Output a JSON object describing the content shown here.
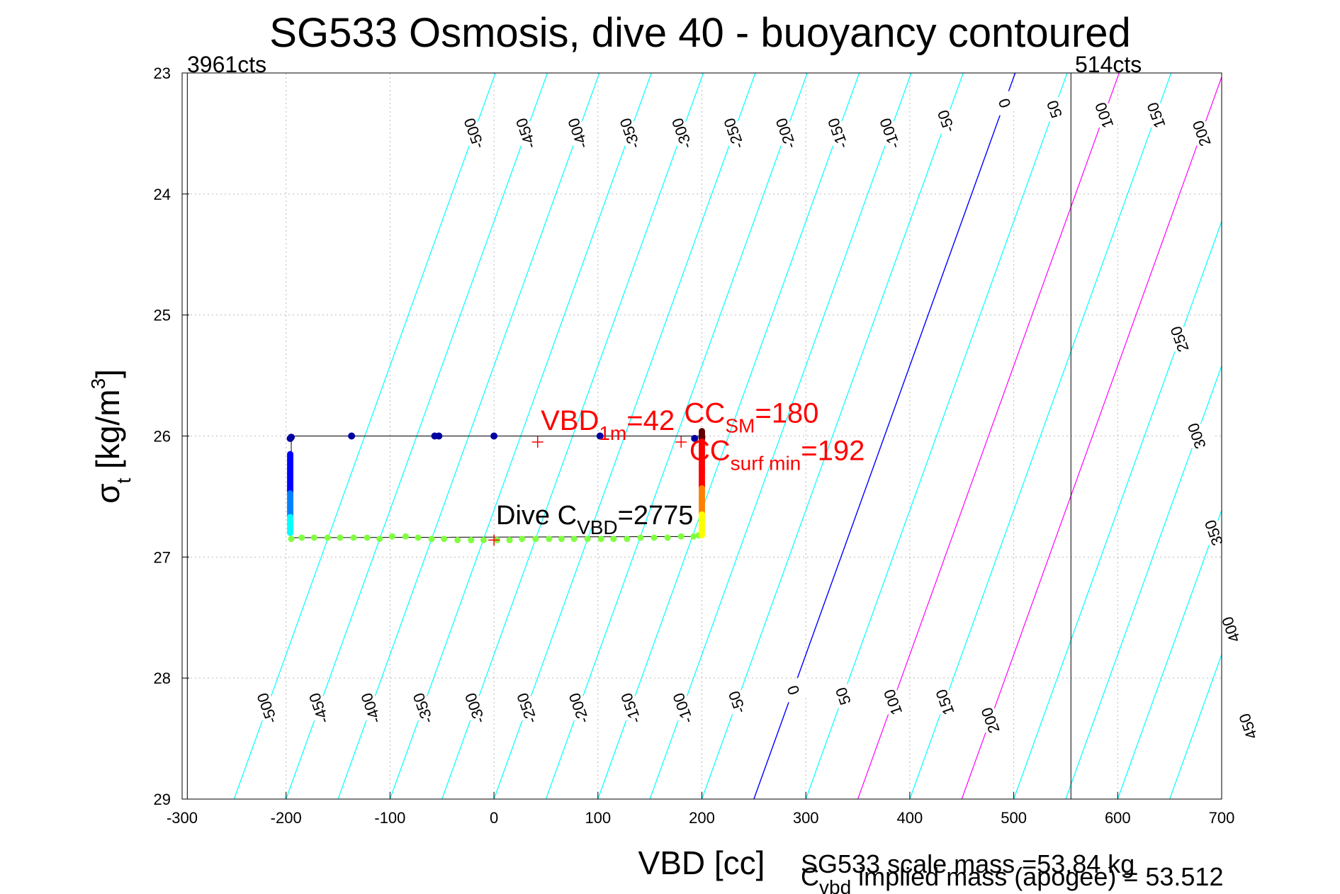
{
  "chart_data": {
    "type": "line",
    "title": "SG533 Osmosis, dive 40 - buoyancy contoured",
    "xlabel": "VBD [cc]",
    "ylabel_main": "σ",
    "ylabel_sub": "t",
    "ylabel_unit": " [kg/m",
    "ylabel_exp": "3",
    "ylabel_close": "]",
    "xlim": [
      -300,
      700
    ],
    "ylim": [
      23,
      29
    ],
    "y_reversed": true,
    "grid": "dotted",
    "xticks": [
      -300,
      -200,
      -100,
      0,
      100,
      200,
      300,
      400,
      500,
      600,
      700
    ],
    "xtick_labels": [
      "-300",
      "-200",
      "-100",
      "0",
      "100",
      "200",
      "300",
      "400",
      "500",
      "600",
      "700"
    ],
    "yticks": [
      23,
      24,
      25,
      26,
      27,
      28,
      29
    ],
    "ytick_labels": [
      "23",
      "24",
      "25",
      "26",
      "27",
      "28",
      "29"
    ],
    "vbd_limits": [
      {
        "name": "min_counts",
        "x": -295,
        "label": "3961cts"
      },
      {
        "name": "max_counts",
        "x": 555,
        "label": "514cts"
      }
    ],
    "contours": {
      "levels": [
        -500,
        -450,
        -400,
        -350,
        -300,
        -250,
        -200,
        -150,
        -100,
        -50,
        0,
        50,
        100,
        150,
        200,
        250,
        300,
        350,
        400,
        450
      ],
      "slope_cc_per_sigma": -41.9,
      "intercept_at_sigma_29": 250,
      "colors": {
        "negative_and_small": "#00ffff",
        "zero": "#0000ff",
        "positive_large": "#ff00ff"
      },
      "top_labels": [
        {
          "level": "-500",
          "sigma": 23.5
        },
        {
          "level": "-450",
          "sigma": 23.5
        },
        {
          "level": "-400",
          "sigma": 23.5
        },
        {
          "level": "-350",
          "sigma": 23.5
        },
        {
          "level": "-300",
          "sigma": 23.5
        },
        {
          "level": "-250",
          "sigma": 23.5
        },
        {
          "level": "-200",
          "sigma": 23.5
        },
        {
          "level": "-150",
          "sigma": 23.5
        },
        {
          "level": "-100",
          "sigma": 23.5
        },
        {
          "level": "-50",
          "sigma": 23.4
        },
        {
          "level": "0",
          "sigma": 23.25
        },
        {
          "level": "50",
          "sigma": 23.3
        },
        {
          "level": "100",
          "sigma": 23.35
        },
        {
          "level": "150",
          "sigma": 23.35
        },
        {
          "level": "200",
          "sigma": 23.5
        },
        {
          "level": "250",
          "sigma": 25.2
        },
        {
          "level": "300",
          "sigma": 26.0
        },
        {
          "level": "350",
          "sigma": 26.8
        },
        {
          "level": "400",
          "sigma": 27.6
        },
        {
          "level": "450",
          "sigma": 28.4
        }
      ],
      "bottom_labels": [
        {
          "level": "-500",
          "sigma": 28.25
        },
        {
          "level": "-450",
          "sigma": 28.25
        },
        {
          "level": "-400",
          "sigma": 28.25
        },
        {
          "level": "-350",
          "sigma": 28.25
        },
        {
          "level": "-300",
          "sigma": 28.25
        },
        {
          "level": "-250",
          "sigma": 28.25
        },
        {
          "level": "-200",
          "sigma": 28.25
        },
        {
          "level": "-150",
          "sigma": 28.25
        },
        {
          "level": "-100",
          "sigma": 28.25
        },
        {
          "level": "-50",
          "sigma": 28.2
        },
        {
          "level": "0",
          "sigma": 28.1
        },
        {
          "level": "50",
          "sigma": 28.15
        },
        {
          "level": "100",
          "sigma": 28.2
        },
        {
          "level": "150",
          "sigma": 28.2
        },
        {
          "level": "200",
          "sigma": 28.35
        }
      ]
    },
    "series": [
      {
        "kind": "dive_path_line",
        "color": "#000000",
        "points": [
          [
            -197,
            26.0
          ],
          [
            193,
            26.0
          ],
          [
            200,
            26.0
          ],
          [
            200,
            26.83
          ],
          [
            -195,
            26.84
          ],
          [
            -195,
            26.0
          ]
        ]
      },
      {
        "kind": "apogee_points",
        "color": "#0000a0",
        "points": [
          [
            -196,
            26.02
          ],
          [
            -195,
            26.01
          ],
          [
            -137,
            26.0
          ],
          [
            -57,
            26.0
          ],
          [
            -53,
            26.0
          ],
          [
            0,
            26.0
          ],
          [
            102,
            26.0
          ],
          [
            193,
            26.02
          ],
          [
            200,
            26.01
          ]
        ]
      },
      {
        "kind": "climb_vertical_points",
        "x": -196,
        "sigma_top": 26.15,
        "sigma_bottom": 26.8,
        "color_top": "#0000ff",
        "color_mid": "#0080ff",
        "color_bottom": "#00ffff"
      },
      {
        "kind": "green_points",
        "color": "#80ff40",
        "points": [
          [
            -195,
            26.85
          ],
          [
            -185,
            26.84
          ],
          [
            -173,
            26.84
          ],
          [
            -160,
            26.84
          ],
          [
            -148,
            26.84
          ],
          [
            -135,
            26.84
          ],
          [
            -122,
            26.84
          ],
          [
            -110,
            26.85
          ],
          [
            -98,
            26.83
          ],
          [
            -85,
            26.83
          ],
          [
            -73,
            26.84
          ],
          [
            -60,
            26.85
          ],
          [
            -48,
            26.85
          ],
          [
            -35,
            26.86
          ],
          [
            -22,
            26.86
          ],
          [
            -10,
            26.86
          ],
          [
            3,
            26.86
          ],
          [
            15,
            26.86
          ],
          [
            27,
            26.85
          ],
          [
            40,
            26.85
          ],
          [
            53,
            26.85
          ],
          [
            65,
            26.85
          ],
          [
            77,
            26.85
          ],
          [
            90,
            26.85
          ],
          [
            103,
            26.85
          ],
          [
            115,
            26.85
          ],
          [
            128,
            26.85
          ],
          [
            141,
            26.84
          ],
          [
            154,
            26.84
          ],
          [
            167,
            26.84
          ],
          [
            180,
            26.83
          ],
          [
            192,
            26.83
          ],
          [
            197,
            26.82
          ]
        ]
      },
      {
        "kind": "surface_vertical_points",
        "x": 200,
        "sigma_top": 25.96,
        "sigma_bottom": 26.82,
        "color_top": "#600000",
        "color_mid": "#ff0000",
        "color_low": "#ff8000",
        "color_bottom": "#ffff00"
      }
    ],
    "markers": [
      {
        "name": "vbd_1m_marker",
        "x": 42,
        "sigma": 26.05,
        "color": "#ff0000"
      },
      {
        "name": "cc_sm_marker",
        "x": 180,
        "sigma": 26.05,
        "color": "#ff0000"
      },
      {
        "name": "dive_cvbd_marker",
        "x": 0,
        "sigma": 26.86,
        "color": "#ff0000"
      }
    ],
    "annotations": {
      "vbd_1m": {
        "main": "VBD",
        "sub": "1m",
        "rest": "=42",
        "x": 45,
        "sigma": 25.95
      },
      "cc_sm": {
        "main": "CC",
        "sub": "SM",
        "rest": "=180",
        "x": 183,
        "sigma": 25.89
      },
      "cc_surf_min": {
        "main": "CC",
        "sub": "surf min",
        "rest": "=192",
        "x": 188,
        "sigma": 26.2
      },
      "dive_cvbd": {
        "main": "Dive C",
        "sub": "VBD",
        "rest": "=2775",
        "x": 2,
        "sigma": 26.73
      }
    },
    "footer": {
      "line1": "SG533 scale mass =53.84 kg",
      "line2_main": "C",
      "line2_sub": "vbd",
      "line2_rest": " implied mass (apogee) = 53.512"
    }
  }
}
